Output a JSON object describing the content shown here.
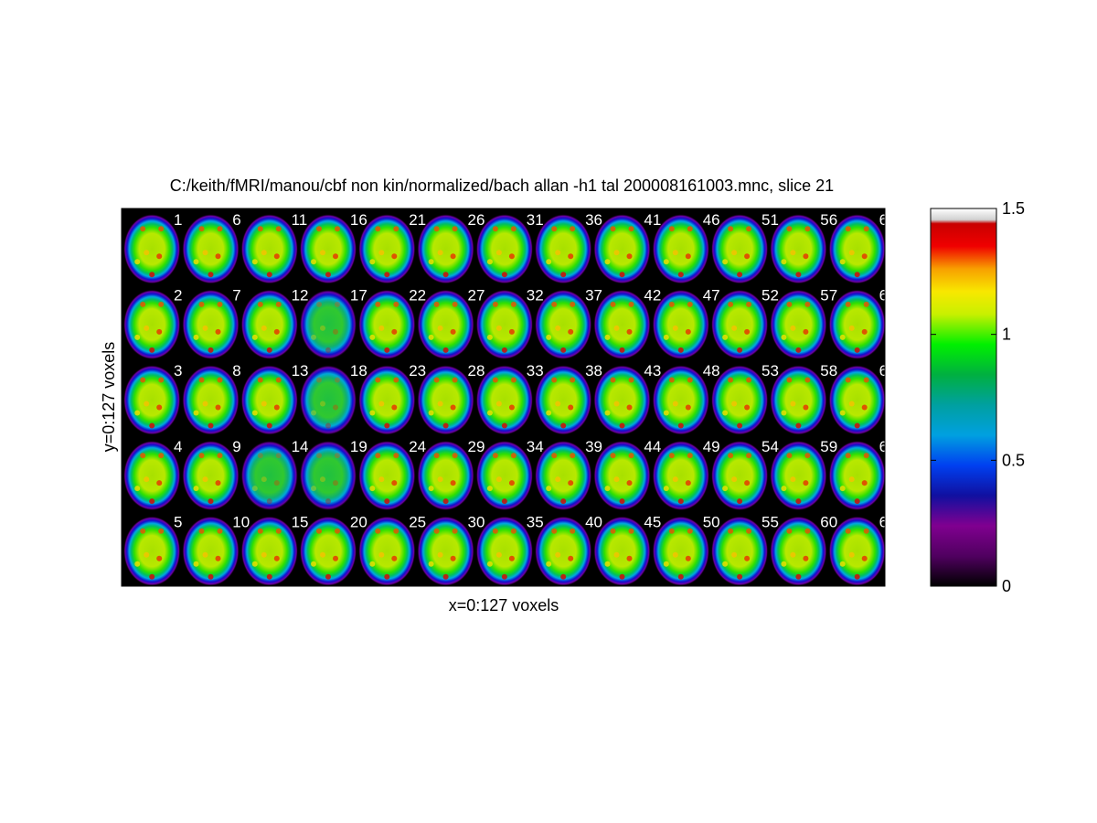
{
  "chart_data": {
    "type": "heatmap",
    "title": "C:/keith/fMRI/manou/cbf non kin/normalized/bach allan -h1 tal 200008161003.mnc, slice 21",
    "xlabel": "x=0:127 voxels",
    "ylabel": "y=0:127 voxels",
    "grid": false,
    "layout": {
      "rows": 5,
      "columns": 13,
      "order": "column-major"
    },
    "frame_labels": [
      "1",
      "2",
      "3",
      "4",
      "5",
      "6",
      "7",
      "8",
      "9",
      "10",
      "11",
      "12",
      "13",
      "14",
      "15",
      "16",
      "17",
      "18",
      "19",
      "20",
      "21",
      "22",
      "23",
      "24",
      "25",
      "26",
      "27",
      "28",
      "29",
      "30",
      "31",
      "32",
      "33",
      "34",
      "35",
      "36",
      "37",
      "38",
      "39",
      "40",
      "41",
      "42",
      "43",
      "44",
      "45",
      "46",
      "47",
      "48",
      "49",
      "50",
      "51",
      "52",
      "53",
      "54",
      "55",
      "56",
      "57",
      "58",
      "59",
      "60",
      "6",
      "6",
      "6",
      "6",
      "6"
    ],
    "colorbar": {
      "ticks": [
        "0",
        "0.5",
        "1",
        "1.5"
      ],
      "tick_values": [
        0,
        0.5,
        1,
        1.5
      ],
      "range": [
        0,
        1.5
      ],
      "colormap": "spectral"
    },
    "colors": {
      "background": "#000000",
      "label_text": "#ffffff"
    }
  }
}
